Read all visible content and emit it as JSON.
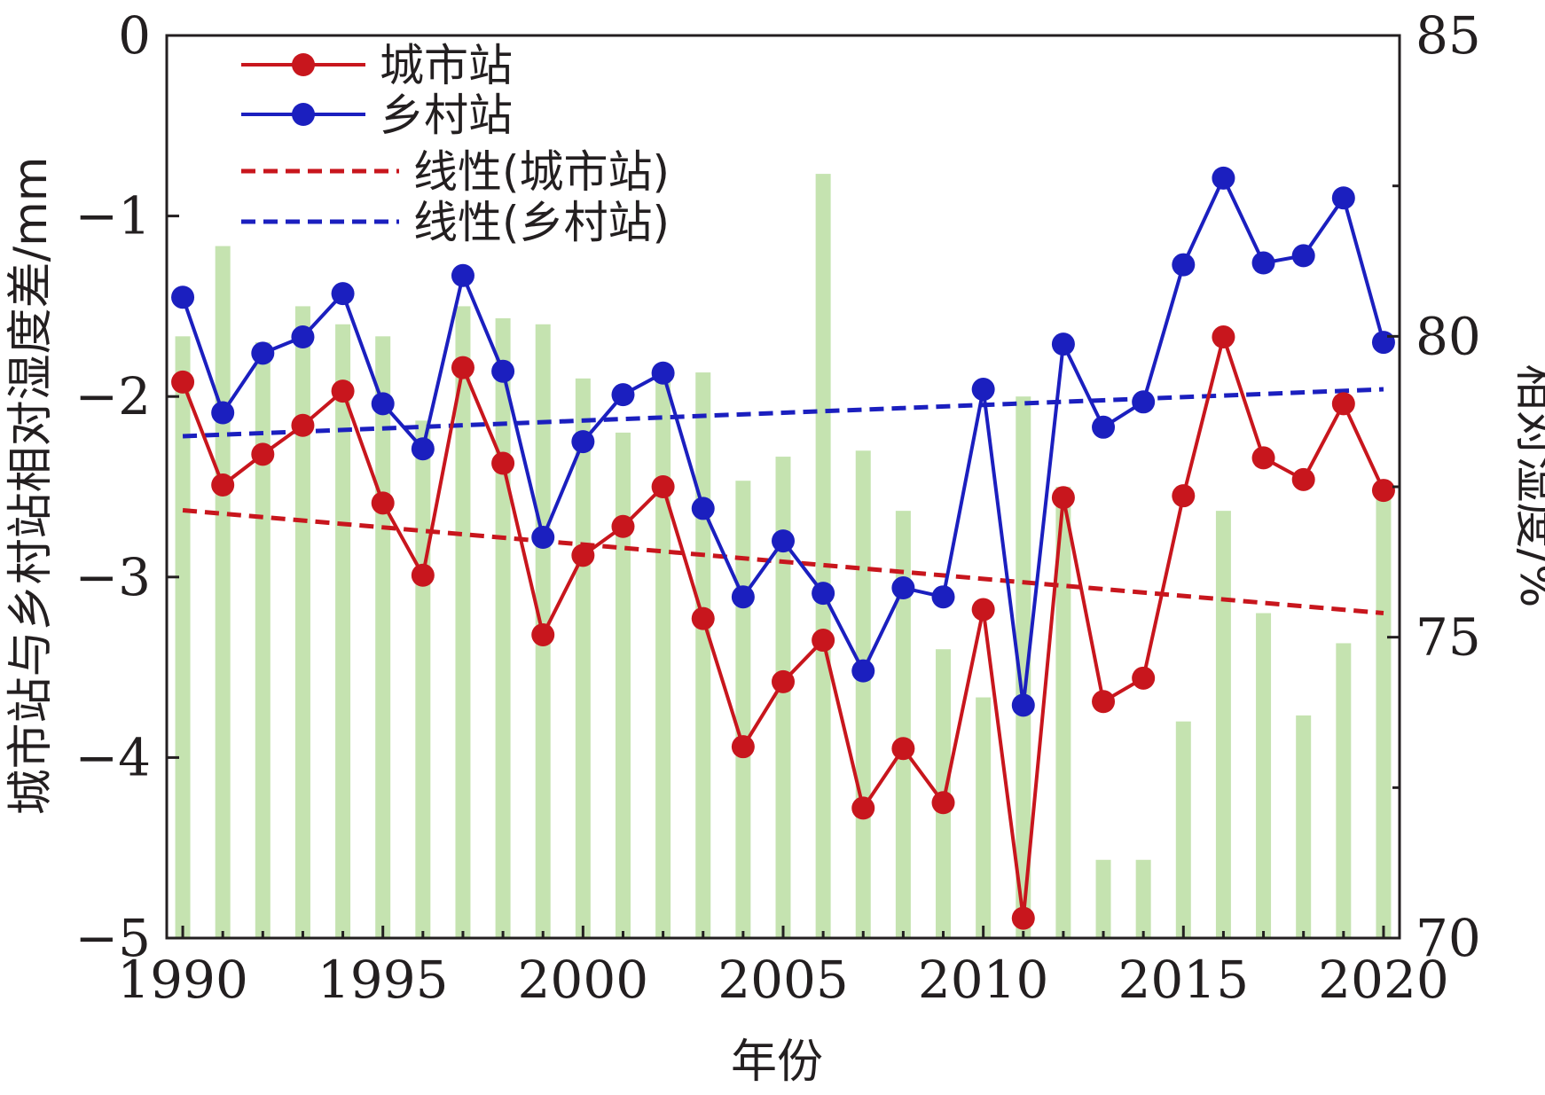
{
  "chart_data": {
    "type": "bar+line",
    "title": "",
    "xlabel": "年份",
    "ylabel_left": "城市站与乡村站相对湿度差/mm",
    "ylabel_right": "相对湿度/%",
    "x_ticks": [
      "1990",
      "1995",
      "2000",
      "2005",
      "2010",
      "2015",
      "2020"
    ],
    "y_left_ticks": [
      "0",
      "−1",
      "−2",
      "−3",
      "−4",
      "−5"
    ],
    "y_right_ticks": [
      "85",
      "80",
      "75",
      "70"
    ],
    "xlim": [
      1989.6,
      2020.4
    ],
    "y_left_lim": [
      -5,
      0
    ],
    "y_right_lim": [
      70,
      85
    ],
    "years": [
      1990,
      1991,
      1992,
      1993,
      1994,
      1995,
      1996,
      1997,
      1998,
      1999,
      2000,
      2001,
      2002,
      2003,
      2004,
      2005,
      2006,
      2007,
      2008,
      2009,
      2010,
      2011,
      2012,
      2013,
      2014,
      2015,
      2016,
      2017,
      2018,
      2019,
      2020
    ],
    "bars": {
      "name": "相对湿度",
      "axis": "right",
      "color": "#c5e3b0",
      "values": [
        80.0,
        81.5,
        79.9,
        80.5,
        80.2,
        80.0,
        78.6,
        80.5,
        80.3,
        80.2,
        79.3,
        78.4,
        79.4,
        79.4,
        77.6,
        78.0,
        82.7,
        78.1,
        77.1,
        74.8,
        74.0,
        79.0,
        77.5,
        71.3,
        71.3,
        73.6,
        77.1,
        75.4,
        73.7,
        74.9,
        77.6
      ]
    },
    "series": [
      {
        "name": "城市站",
        "axis": "left",
        "color": "#c8161d",
        "values": [
          -1.92,
          -2.49,
          -2.32,
          -2.16,
          -1.97,
          -2.59,
          -2.99,
          -1.84,
          -2.37,
          -3.32,
          -2.88,
          -2.72,
          -2.5,
          -3.23,
          -3.94,
          -3.58,
          -3.35,
          -4.28,
          -3.95,
          -4.25,
          -3.18,
          -4.89,
          -2.56,
          -3.69,
          -3.56,
          -2.55,
          -1.67,
          -2.34,
          -2.46,
          -2.04,
          -2.52
        ]
      },
      {
        "name": "乡村站",
        "axis": "left",
        "color": "#1b1fbf",
        "values": [
          -1.45,
          -2.09,
          -1.76,
          -1.67,
          -1.43,
          -2.04,
          -2.29,
          -1.33,
          -1.86,
          -2.78,
          -2.25,
          -1.99,
          -1.87,
          -2.62,
          -3.11,
          -2.8,
          -3.09,
          -3.52,
          -3.06,
          -3.11,
          -1.96,
          -3.71,
          -1.71,
          -2.17,
          -2.03,
          -1.27,
          -0.79,
          -1.26,
          -1.22,
          -0.9,
          -1.7
        ]
      }
    ],
    "trendlines": [
      {
        "name": "线性(城市站)",
        "color": "#c8161d",
        "x": [
          1990,
          2020
        ],
        "values": [
          -2.63,
          -3.2
        ]
      },
      {
        "name": "线性(乡村站)",
        "color": "#1b1fbf",
        "x": [
          1990,
          2020
        ],
        "values": [
          -2.22,
          -1.96
        ]
      }
    ],
    "legend": {
      "placement": "top-left",
      "entries": [
        "城市站",
        "乡村站",
        "线性(城市站)",
        "线性(乡村站)"
      ]
    }
  }
}
